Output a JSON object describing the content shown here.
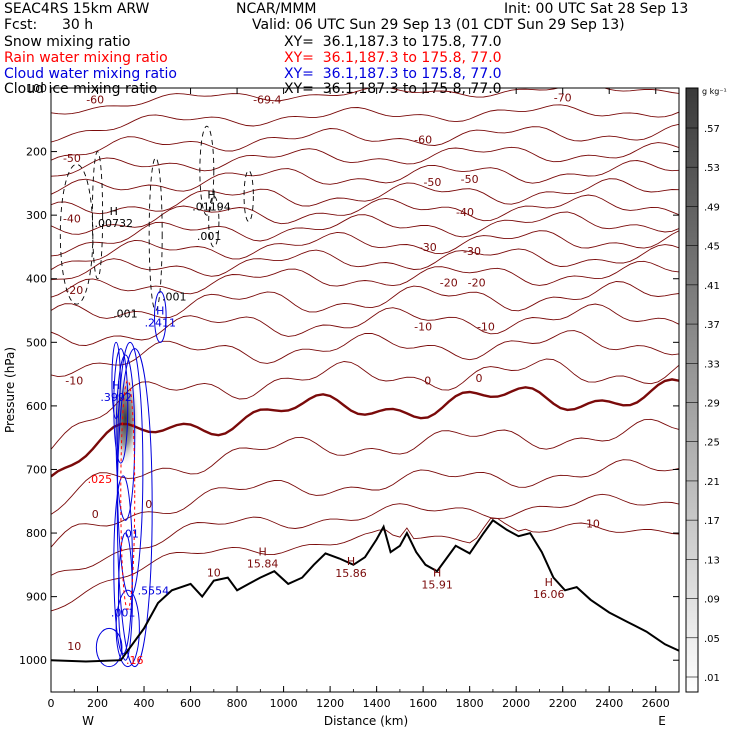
{
  "header": {
    "model": "SEAC4RS 15km ARW",
    "org": "NCAR/MMM",
    "init": "Init: 00 UTC Sat 28 Sep 13",
    "fcst_label": "Fcst:",
    "fcst_value": "30 h",
    "valid": "Valid: 06 UTC Sun 29 Sep 13 (01 CDT Sun 29 Sep 13)",
    "fields": [
      {
        "name": "Snow mixing ratio",
        "xy": "XY=  36.1,187.3 to 175.8, 77.0",
        "color": "#000000"
      },
      {
        "name": "Rain water mixing ratio",
        "xy": "XY=  36.1,187.3 to 175.8, 77.0",
        "color": "#ff0000"
      },
      {
        "name": "Cloud water mixing ratio",
        "xy": "XY=  36.1,187.3 to 175.8, 77.0",
        "color": "#0000dd"
      },
      {
        "name": "Cloud ice mixing ratio",
        "xy": "XY=  36.1,187.3 to 175.8, 77.0",
        "color": "#000000"
      }
    ]
  },
  "chart_data": {
    "type": "contour",
    "xlabel": "Distance (km)",
    "ylabel": "Pressure (hPa)",
    "xlim": [
      0,
      2700
    ],
    "ylim": [
      1050,
      100
    ],
    "x_ticks": [
      0,
      200,
      400,
      600,
      800,
      1000,
      1200,
      1400,
      1600,
      1800,
      2000,
      2200,
      2400,
      2600
    ],
    "y_ticks": [
      100,
      200,
      300,
      400,
      500,
      600,
      700,
      800,
      900,
      1000
    ],
    "endpoints": {
      "left": "W",
      "right": "E"
    },
    "temperature_contour_color": "#7a0a0a",
    "temperature_labels": [
      {
        "x": 190,
        "p": 118,
        "t": "-60"
      },
      {
        "x": 930,
        "p": 118,
        "t": "-69.4"
      },
      {
        "x": 2200,
        "p": 115,
        "t": "-70"
      },
      {
        "x": 1600,
        "p": 181,
        "t": "-60"
      },
      {
        "x": 90,
        "p": 210,
        "t": "-50"
      },
      {
        "x": 1640,
        "p": 248,
        "t": "-50"
      },
      {
        "x": 1800,
        "p": 243,
        "t": "-50"
      },
      {
        "x": 90,
        "p": 305,
        "t": "-40"
      },
      {
        "x": 1780,
        "p": 295,
        "t": "-40"
      },
      {
        "x": 1620,
        "p": 350,
        "t": "-30"
      },
      {
        "x": 1810,
        "p": 356,
        "t": "-30"
      },
      {
        "x": 100,
        "p": 418,
        "t": "-20"
      },
      {
        "x": 1710,
        "p": 406,
        "t": "-20"
      },
      {
        "x": 1830,
        "p": 406,
        "t": "-20"
      },
      {
        "x": 1600,
        "p": 475,
        "t": "-10"
      },
      {
        "x": 1870,
        "p": 475,
        "t": "-10"
      },
      {
        "x": 100,
        "p": 560,
        "t": "-10"
      },
      {
        "x": 1620,
        "p": 560,
        "t": "0"
      },
      {
        "x": 1840,
        "p": 556,
        "t": "0"
      },
      {
        "x": 190,
        "p": 770,
        "t": "0"
      },
      {
        "x": 420,
        "p": 754,
        "t": "0"
      },
      {
        "x": 2330,
        "p": 785,
        "t": "10"
      },
      {
        "x": 700,
        "p": 862,
        "t": "10"
      },
      {
        "x": 100,
        "p": 978,
        "t": "10"
      }
    ],
    "maxima": [
      {
        "label": "H",
        "value": ".00732",
        "x": 270,
        "p": 309,
        "color": "#000000"
      },
      {
        "label": "H",
        "value": ".01194",
        "x": 690,
        "p": 283,
        "color": "#000000"
      },
      {
        "label": "H",
        "value": ".2411",
        "x": 470,
        "p": 466,
        "color": "#0000dd"
      },
      {
        "label": "H",
        "value": ".3992",
        "x": 280,
        "p": 583,
        "color": "#0000dd"
      },
      {
        "label": "H",
        "value": "15.84",
        "x": 910,
        "p": 845,
        "color": "#7a0a0a"
      },
      {
        "label": "H",
        "value": "15.86",
        "x": 1290,
        "p": 860,
        "color": "#7a0a0a"
      },
      {
        "label": "H",
        "value": "15.91",
        "x": 1660,
        "p": 878,
        "color": "#7a0a0a"
      },
      {
        "label": "H",
        "value": "16.06",
        "x": 2140,
        "p": 893,
        "color": "#7a0a0a"
      }
    ],
    "contour_labels": [
      {
        "x": 320,
        "p": 455,
        "t": ".001",
        "color": "#000000"
      },
      {
        "x": 530,
        "p": 428,
        "t": ".001",
        "color": "#000000"
      },
      {
        "x": 680,
        "p": 333,
        "t": ".001",
        "color": "#000000"
      },
      {
        "x": 210,
        "p": 715,
        "t": ".025",
        "color": "#ff0000"
      },
      {
        "x": 340,
        "p": 801,
        "t": ".01",
        "color": "#0000dd"
      },
      {
        "x": 440,
        "p": 890,
        "t": ".5554",
        "color": "#0000dd"
      },
      {
        "x": 310,
        "p": 925,
        "t": ".001",
        "color": "#0000dd"
      },
      {
        "x": 360,
        "p": 1000,
        "t": ".16",
        "color": "#ff0000"
      }
    ],
    "terrain_color": "#000000",
    "terrain": [
      [
        0,
        1000
      ],
      [
        150,
        1002
      ],
      [
        300,
        1000
      ],
      [
        400,
        950
      ],
      [
        460,
        910
      ],
      [
        520,
        890
      ],
      [
        600,
        880
      ],
      [
        650,
        900
      ],
      [
        700,
        875
      ],
      [
        760,
        870
      ],
      [
        800,
        890
      ],
      [
        850,
        880
      ],
      [
        900,
        870
      ],
      [
        960,
        860
      ],
      [
        1020,
        880
      ],
      [
        1080,
        870
      ],
      [
        1130,
        850
      ],
      [
        1180,
        832
      ],
      [
        1240,
        840
      ],
      [
        1300,
        850
      ],
      [
        1350,
        838
      ],
      [
        1400,
        810
      ],
      [
        1430,
        790
      ],
      [
        1460,
        830
      ],
      [
        1500,
        820
      ],
      [
        1530,
        800
      ],
      [
        1570,
        830
      ],
      [
        1610,
        850
      ],
      [
        1660,
        860
      ],
      [
        1700,
        840
      ],
      [
        1740,
        820
      ],
      [
        1800,
        832
      ],
      [
        1860,
        800
      ],
      [
        1900,
        780
      ],
      [
        1960,
        795
      ],
      [
        2010,
        805
      ],
      [
        2060,
        800
      ],
      [
        2110,
        830
      ],
      [
        2160,
        870
      ],
      [
        2210,
        890
      ],
      [
        2260,
        885
      ],
      [
        2320,
        905
      ],
      [
        2400,
        925
      ],
      [
        2480,
        940
      ],
      [
        2560,
        955
      ],
      [
        2640,
        975
      ],
      [
        2700,
        985
      ]
    ],
    "colorbar": {
      "unit": "g kg⁻¹",
      "ticks": [
        ".57",
        ".53",
        ".49",
        ".45",
        ".41",
        ".37",
        ".33",
        ".29",
        ".25",
        ".21",
        ".17",
        ".13",
        ".09",
        ".05",
        ".01"
      ]
    }
  }
}
